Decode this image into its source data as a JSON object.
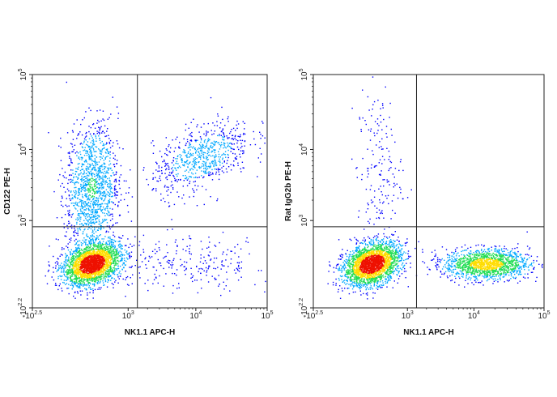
{
  "chart_data": [
    {
      "type": "scatter",
      "subtype": "flow-cytometry-density-dot-plot",
      "xlabel": "NK1.1 APC-H",
      "ylabel": "CD122 PE-H",
      "x_scale": "biexponential",
      "y_scale": "biexponential",
      "xlim": [
        "-10^2.5",
        "10^5"
      ],
      "ylim": [
        "-10^2.2",
        "10^5"
      ],
      "x_ticks": [
        {
          "base": "-10",
          "exp": "2.5",
          "value": -316
        },
        {
          "base": "10",
          "exp": "3",
          "value": 1000
        },
        {
          "base": "10",
          "exp": "4",
          "value": 10000
        },
        {
          "base": "10",
          "exp": "5",
          "value": 100000
        }
      ],
      "y_ticks": [
        {
          "base": "-10",
          "exp": "2.2",
          "value": -158
        },
        {
          "base": "10",
          "exp": "3",
          "value": 1000
        },
        {
          "base": "10",
          "exp": "4",
          "value": 10000
        },
        {
          "base": "10",
          "exp": "5",
          "value": 100000
        }
      ],
      "gate": {
        "x": 1400,
        "y": 800
      },
      "populations": [
        {
          "x": 200,
          "y": 150,
          "density": "highest"
        },
        {
          "x": 200,
          "y": 3000,
          "density": "medium"
        },
        {
          "x": 12000,
          "y": 8000,
          "density": "low"
        },
        {
          "x": 8000,
          "y": 150,
          "density": "sparse"
        }
      ],
      "colors": [
        "#0000ff",
        "#00a8ff",
        "#22dd55",
        "#ffdd00",
        "#ee1100"
      ],
      "grid": false
    },
    {
      "type": "scatter",
      "subtype": "flow-cytometry-density-dot-plot",
      "xlabel": "NK1.1 APC-H",
      "ylabel": "Rat IgG2b PE-H",
      "x_scale": "biexponential",
      "y_scale": "biexponential",
      "xlim": [
        "-10^2.5",
        "10^5"
      ],
      "ylim": [
        "-10^2.2",
        "10^5"
      ],
      "x_ticks": [
        {
          "base": "-10",
          "exp": "2.5",
          "value": -316
        },
        {
          "base": "10",
          "exp": "3",
          "value": 1000
        },
        {
          "base": "10",
          "exp": "4",
          "value": 10000
        },
        {
          "base": "10",
          "exp": "5",
          "value": 100000
        }
      ],
      "y_ticks": [
        {
          "base": "-10",
          "exp": "2.2",
          "value": -158
        },
        {
          "base": "10",
          "exp": "3",
          "value": 1000
        },
        {
          "base": "10",
          "exp": "4",
          "value": 10000
        },
        {
          "base": "10",
          "exp": "5",
          "value": 100000
        }
      ],
      "gate": {
        "x": 1400,
        "y": 800
      },
      "populations": [
        {
          "x": 200,
          "y": 150,
          "density": "highest"
        },
        {
          "x": 15000,
          "y": 150,
          "density": "medium"
        },
        {
          "x": 300,
          "y": 5000,
          "density": "sparse"
        }
      ],
      "colors": [
        "#0000ff",
        "#00a8ff",
        "#22dd55",
        "#ffdd00",
        "#ee1100"
      ],
      "grid": false
    }
  ]
}
